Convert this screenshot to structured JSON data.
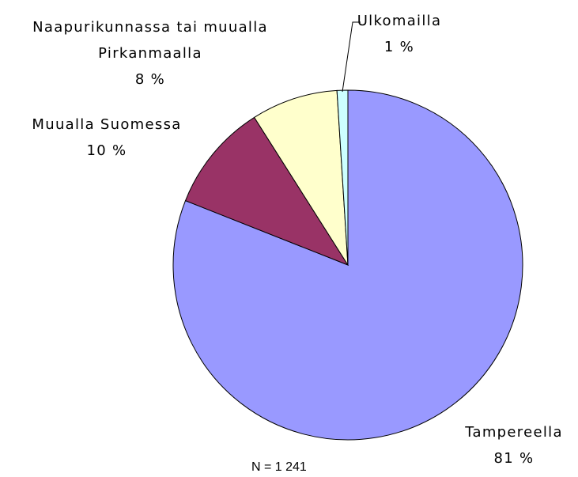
{
  "chart_data": {
    "type": "pie",
    "categories": [
      "Tampereella",
      "Muualla Suomessa",
      "Naapurikunnassa tai muualla Pirkanmaalla",
      "Ulkomailla"
    ],
    "values": [
      81,
      10,
      8,
      1
    ],
    "value_labels": [
      "81 %",
      "10 %",
      "8 %",
      "1 %"
    ],
    "colors": [
      "#9999ff",
      "#993366",
      "#ffffcc",
      "#ccffff"
    ],
    "annotation": "N = 1 241"
  }
}
